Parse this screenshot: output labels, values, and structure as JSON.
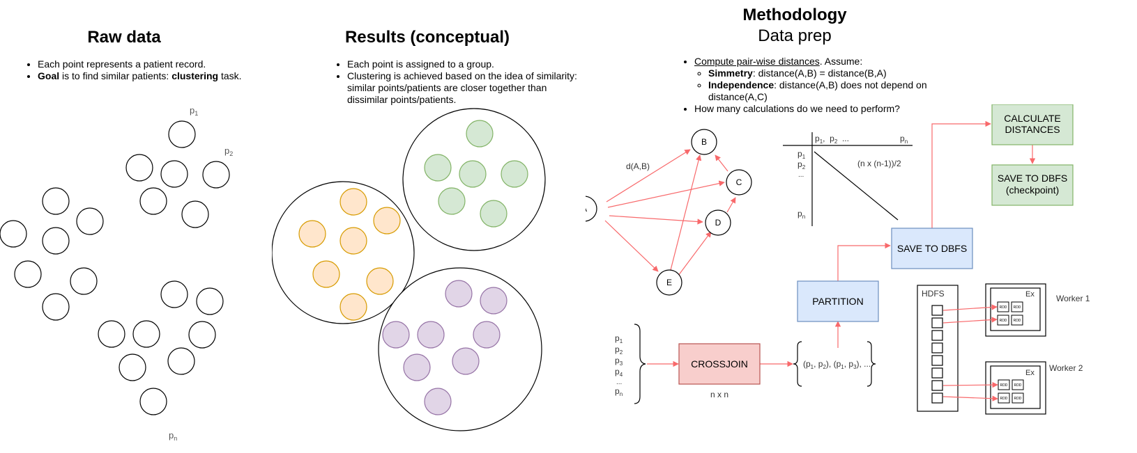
{
  "raw": {
    "title": "Raw data",
    "bullets": [
      {
        "bold_lead": "",
        "text": "Each point represents a patient record.",
        "bold_mid": "",
        "tail": ""
      },
      {
        "bold_lead": "Goal",
        "text": " is to find similar patients: ",
        "bold_mid": "clustering",
        "tail": " task."
      }
    ],
    "labels": {
      "p1": "p",
      "p1_sub": "1",
      "p2": "p",
      "p2_sub": "2",
      "pn": "p",
      "pn_sub": "n"
    }
  },
  "results": {
    "title": "Results (conceptual)",
    "bullets": [
      "Each point is assigned to a group.",
      "Clustering is achieved based on the idea of similarity: similar points/patients are closer together than dissimilar points/patients."
    ],
    "colors": {
      "green_fill": "#d5e8d4",
      "green_stroke": "#82b366",
      "orange_fill": "#ffe6cc",
      "orange_stroke": "#d79b00",
      "purple_fill": "#e1d5e7",
      "purple_stroke": "#9673a6"
    }
  },
  "methodology": {
    "title": "Methodology",
    "subtitle": "Data prep",
    "bullet1_link": "Compute pair-wise distances",
    "bullet1_rest": ". Assume:",
    "sub1_bold": "Simmetry",
    "sub1_rest": ": distance(A,B) = distance(B,A)",
    "sub2_bold": "Independence",
    "sub2_rest": ": distance(A,B) does not depend on distance(A,C)",
    "bullet2": "How many calculations do we need to perform?"
  },
  "graph": {
    "nodes": [
      "A",
      "B",
      "C",
      "D",
      "E"
    ],
    "edge_label": "d(A,B)",
    "arrow_color": "#f8696b"
  },
  "matrix": {
    "top": [
      "p",
      "1",
      ",",
      "p",
      "2",
      "...",
      "p",
      "n"
    ],
    "rows": [
      "p1",
      "p2",
      "...",
      "pn"
    ],
    "formula": "(n x (n-1))/2"
  },
  "pipeline": {
    "inputs": [
      "p1",
      "p2",
      "p3",
      "p4",
      "...",
      "pn"
    ],
    "crossjoin": "CROSSJOIN",
    "crossjoin_sub": "n x n",
    "pairs": "(p1, p2), (p1, p3), ...",
    "partition": "PARTITION",
    "save1": "SAVE TO DBFS",
    "calc_line1": "CALCULATE",
    "calc_line2": "DISTANCES",
    "save2_line1": "SAVE TO DBFS",
    "save2_line2": "(checkpoint)",
    "colors": {
      "red_fill": "#f8cecc",
      "red_stroke": "#b85450",
      "blue_fill": "#dae8fc",
      "blue_stroke": "#6c8ebf",
      "green_fill": "#d5e8d4",
      "green_stroke": "#82b366"
    }
  },
  "cluster": {
    "hdfs": "HDFS",
    "worker1": "Worker 1",
    "worker2": "Worker 2",
    "ex": "Ex",
    "rdd": "RDD"
  }
}
